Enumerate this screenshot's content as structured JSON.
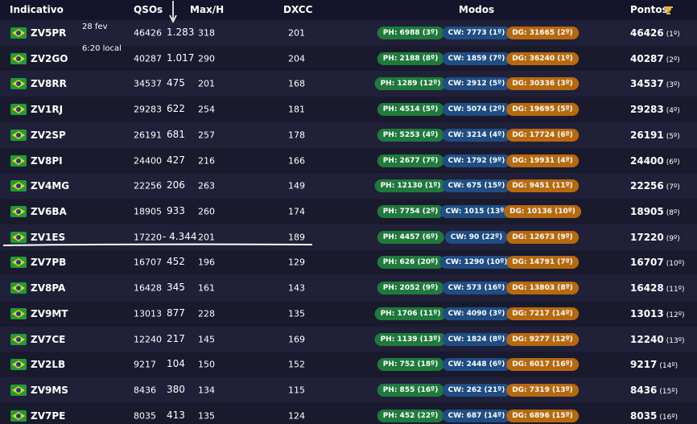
{
  "header": {
    "callsign": "Indicativo",
    "qsos": "QSOs",
    "max_h": "Max/H",
    "dxcc": "DXCC",
    "modes": "Modos",
    "points": "Pontos"
  },
  "annotation": {
    "date": "28 fev",
    "time": "6:20 local"
  },
  "table": {
    "rows": [
      {
        "callsign": "ZV5PR",
        "qsos": "46426",
        "delta": "1.283",
        "max_h": "318",
        "dxcc": "201",
        "ph": "PH: 6988 (3º)",
        "cw": "CW: 7773 (1º)",
        "dg": "DG: 31665 (2º)",
        "points": "46426",
        "rank": "(1º)"
      },
      {
        "callsign": "ZV2GO",
        "qsos": "40287",
        "delta": "1.017",
        "max_h": "290",
        "dxcc": "204",
        "ph": "PH: 2188 (8º)",
        "cw": "CW: 1859 (7º)",
        "dg": "DG: 36240 (1º)",
        "points": "40287",
        "rank": "(2º)"
      },
      {
        "callsign": "ZV8RR",
        "qsos": "34537",
        "delta": "475",
        "max_h": "201",
        "dxcc": "168",
        "ph": "PH: 1289 (12º)",
        "cw": "CW: 2912 (5º)",
        "dg": "DG: 30336 (3º)",
        "points": "34537",
        "rank": "(3º)"
      },
      {
        "callsign": "ZV1RJ",
        "qsos": "29283",
        "delta": "622",
        "max_h": "254",
        "dxcc": "181",
        "ph": "PH: 4514 (5º)",
        "cw": "CW: 5074 (2º)",
        "dg": "DG: 19695 (5º)",
        "points": "29283",
        "rank": "(4º)"
      },
      {
        "callsign": "ZV2SP",
        "qsos": "26191",
        "delta": "681",
        "max_h": "257",
        "dxcc": "178",
        "ph": "PH: 5253 (4º)",
        "cw": "CW: 3214 (4º)",
        "dg": "DG: 17724 (6º)",
        "points": "26191",
        "rank": "(5º)"
      },
      {
        "callsign": "ZV8PI",
        "qsos": "24400",
        "delta": "427",
        "max_h": "216",
        "dxcc": "166",
        "ph": "PH: 2677 (7º)",
        "cw": "CW: 1792 (9º)",
        "dg": "DG: 19931 (4º)",
        "points": "24400",
        "rank": "(6º)"
      },
      {
        "callsign": "ZV4MG",
        "qsos": "22256",
        "delta": "206",
        "max_h": "263",
        "dxcc": "149",
        "ph": "PH: 12130 (1º)",
        "cw": "CW: 675 (15º)",
        "dg": "DG: 9451 (11º)",
        "points": "22256",
        "rank": "(7º)"
      },
      {
        "callsign": "ZV6BA",
        "qsos": "18905",
        "delta": "933",
        "max_h": "260",
        "dxcc": "174",
        "ph": "PH: 7754 (2º)",
        "cw": "CW: 1015 (13º)",
        "dg": "DG: 10136 (10º)",
        "points": "18905",
        "rank": "(8º)"
      },
      {
        "callsign": "ZV1ES",
        "qsos": "17220",
        "delta": "- 4.344",
        "max_h": "201",
        "dxcc": "189",
        "ph": "PH: 4457 (6º)",
        "cw": "CW: 90 (22º)",
        "dg": "DG: 12673 (9º)",
        "points": "17220",
        "rank": "(9º)"
      },
      {
        "callsign": "ZV7PB",
        "qsos": "16707",
        "delta": "452",
        "max_h": "196",
        "dxcc": "129",
        "ph": "PH: 626 (20º)",
        "cw": "CW: 1290 (10º)",
        "dg": "DG: 14791 (7º)",
        "points": "16707",
        "rank": "(10º)"
      },
      {
        "callsign": "ZV8PA",
        "qsos": "16428",
        "delta": "345",
        "max_h": "161",
        "dxcc": "143",
        "ph": "PH: 2052 (9º)",
        "cw": "CW: 573 (16º)",
        "dg": "DG: 13803 (8º)",
        "points": "16428",
        "rank": "(11º)"
      },
      {
        "callsign": "ZV9MT",
        "qsos": "13013",
        "delta": "877",
        "max_h": "228",
        "dxcc": "135",
        "ph": "PH: 1706 (11º)",
        "cw": "CW: 4090 (3º)",
        "dg": "DG: 7217 (14º)",
        "points": "13013",
        "rank": "(12º)"
      },
      {
        "callsign": "ZV7CE",
        "qsos": "12240",
        "delta": "217",
        "max_h": "145",
        "dxcc": "169",
        "ph": "PH: 1139 (13º)",
        "cw": "CW: 1824 (8º)",
        "dg": "DG: 9277 (12º)",
        "points": "12240",
        "rank": "(13º)"
      },
      {
        "callsign": "ZV2LB",
        "qsos": "9217",
        "delta": "104",
        "max_h": "150",
        "dxcc": "152",
        "ph": "PH: 752 (18º)",
        "cw": "CW: 2448 (6º)",
        "dg": "DG: 6017 (16º)",
        "points": "9217",
        "rank": "(14º)"
      },
      {
        "callsign": "ZV9MS",
        "qsos": "8436",
        "delta": "380",
        "max_h": "134",
        "dxcc": "115",
        "ph": "PH: 855 (16º)",
        "cw": "CW: 262 (21º)",
        "dg": "DG: 7319 (13º)",
        "points": "8436",
        "rank": "(15º)"
      },
      {
        "callsign": "ZV7PE",
        "qsos": "8035",
        "delta": "413",
        "max_h": "135",
        "dxcc": "124",
        "ph": "PH: 452 (22º)",
        "cw": "CW: 687 (14º)",
        "dg": "DG: 6896 (15º)",
        "points": "8035",
        "rank": "(16º)"
      }
    ]
  }
}
